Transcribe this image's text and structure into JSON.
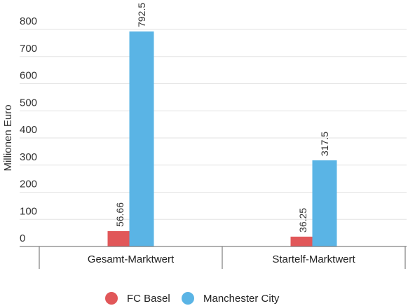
{
  "chart_data": {
    "type": "bar",
    "ylabel": "Millionen Euro",
    "ylim": [
      0,
      850
    ],
    "yticks": [
      0,
      100,
      200,
      300,
      400,
      500,
      600,
      700,
      800
    ],
    "categories": [
      "Gesamt-Marktwert",
      "Startelf-Marktwert"
    ],
    "series": [
      {
        "name": "FC Basel",
        "color": "#e15759",
        "values": [
          56.66,
          36.25
        ],
        "labels": [
          "56.66",
          "36.25"
        ]
      },
      {
        "name": "Manchester City",
        "color": "#5ab4e5",
        "values": [
          792.5,
          317.5
        ],
        "labels": [
          "792.5",
          "317.5"
        ]
      }
    ],
    "grid": true,
    "legend": "bottom"
  }
}
